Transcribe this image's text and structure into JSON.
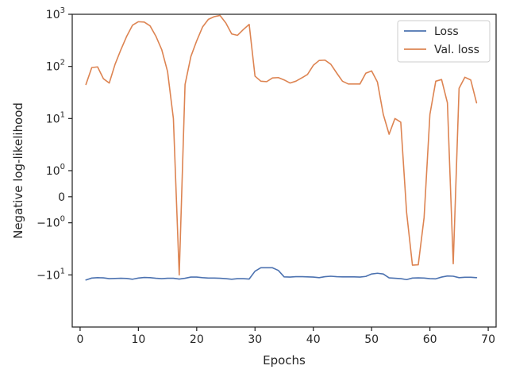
{
  "chart_data": {
    "type": "line",
    "xlabel": "Epochs",
    "ylabel": "Negative log-likelihood",
    "xlim": [
      -1.35,
      71.35
    ],
    "x_ticks": [
      0,
      10,
      20,
      30,
      40,
      50,
      60,
      70
    ],
    "y_scale": "symlog",
    "y_ticks": [
      {
        "value": 1000,
        "base": "10",
        "exp": "3"
      },
      {
        "value": 100,
        "base": "10",
        "exp": "2"
      },
      {
        "value": 10,
        "base": "10",
        "exp": "1"
      },
      {
        "value": 1,
        "base": "10",
        "exp": "0"
      },
      {
        "value": 0,
        "base": "0",
        "exp": ""
      },
      {
        "value": -1,
        "base": "−10",
        "exp": "0"
      },
      {
        "value": -10,
        "base": "−10",
        "exp": "1"
      }
    ],
    "grid": false,
    "legend_position": "top-right",
    "series": [
      {
        "name": "Loss",
        "color": "#4c72b0",
        "x": [
          1,
          2,
          3,
          4,
          5,
          6,
          7,
          8,
          9,
          10,
          11,
          12,
          13,
          14,
          15,
          16,
          17,
          18,
          19,
          20,
          21,
          22,
          23,
          24,
          25,
          26,
          27,
          28,
          29,
          30,
          31,
          32,
          33,
          34,
          35,
          36,
          37,
          38,
          39,
          40,
          41,
          42,
          43,
          44,
          45,
          46,
          47,
          48,
          49,
          50,
          51,
          52,
          53,
          54,
          55,
          56,
          57,
          58,
          59,
          60,
          61,
          62,
          63,
          64,
          65,
          66,
          67,
          68
        ],
        "y": [
          -12.5,
          -11.5,
          -11.3,
          -11.4,
          -11.8,
          -11.7,
          -11.6,
          -11.7,
          -12.1,
          -11.5,
          -11.2,
          -11.3,
          -11.6,
          -11.8,
          -11.6,
          -11.6,
          -12.0,
          -11.6,
          -11.0,
          -11.0,
          -11.3,
          -11.5,
          -11.5,
          -11.6,
          -11.8,
          -12.1,
          -11.8,
          -11.8,
          -12.0,
          -8.5,
          -7.3,
          -7.3,
          -7.3,
          -8.2,
          -10.9,
          -11.0,
          -10.8,
          -10.8,
          -10.9,
          -11.0,
          -11.3,
          -10.8,
          -10.6,
          -10.8,
          -10.9,
          -10.9,
          -10.9,
          -11.0,
          -10.7,
          -9.6,
          -9.3,
          -9.6,
          -11.4,
          -11.6,
          -11.8,
          -12.3,
          -11.5,
          -11.4,
          -11.5,
          -11.8,
          -11.9,
          -11.0,
          -10.5,
          -10.6,
          -11.3,
          -11.1,
          -11.1,
          -11.3
        ]
      },
      {
        "name": "Val. loss",
        "color": "#dd8452",
        "x": [
          1,
          2,
          3,
          4,
          5,
          6,
          7,
          8,
          9,
          10,
          11,
          12,
          13,
          14,
          15,
          16,
          17,
          18,
          19,
          20,
          21,
          22,
          23,
          24,
          25,
          26,
          27,
          28,
          29,
          30,
          31,
          32,
          33,
          34,
          35,
          36,
          37,
          38,
          39,
          40,
          41,
          42,
          43,
          44,
          45,
          46,
          47,
          48,
          49,
          50,
          51,
          52,
          53,
          54,
          55,
          56,
          57,
          58,
          59,
          60,
          61,
          62,
          63,
          64,
          65,
          66,
          67,
          68
        ],
        "y": [
          45,
          95,
          98,
          58,
          48,
          110,
          210,
          380,
          620,
          720,
          710,
          600,
          380,
          210,
          80,
          10,
          -10,
          45,
          155,
          310,
          570,
          800,
          900,
          950,
          680,
          420,
          395,
          510,
          640,
          65,
          52,
          51,
          60,
          61,
          55,
          48,
          52,
          60,
          70,
          105,
          130,
          132,
          110,
          75,
          52,
          46,
          46,
          46,
          74,
          82,
          50,
          12,
          5,
          10,
          8.5,
          -0.6,
          -6.5,
          -6.4,
          -0.8,
          12,
          52,
          56,
          20,
          -6.1,
          38,
          62,
          55,
          20
        ]
      }
    ]
  }
}
